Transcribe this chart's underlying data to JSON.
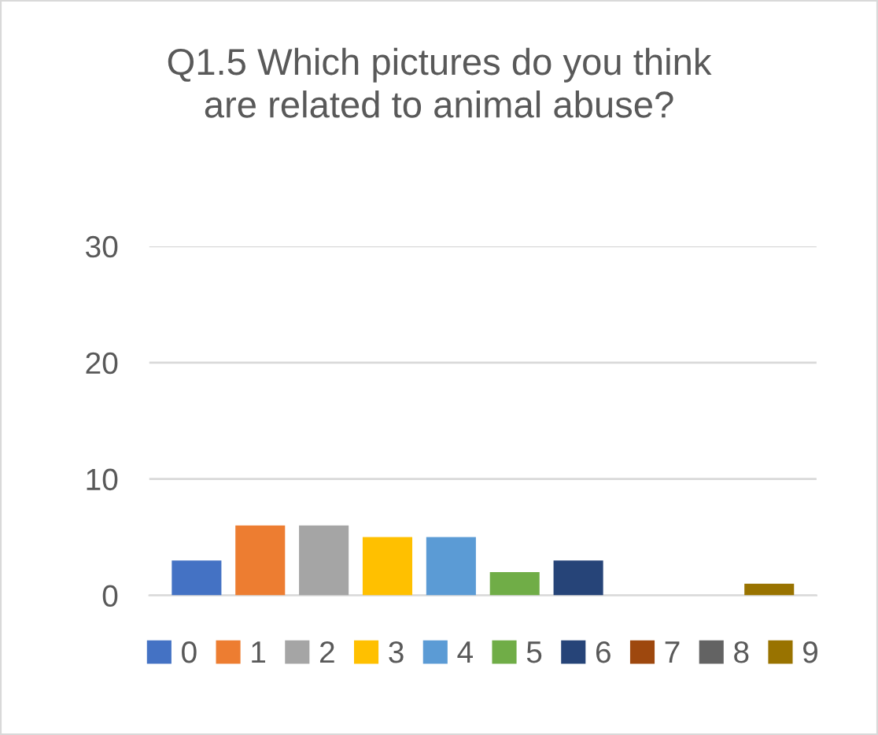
{
  "chart_data": {
    "type": "bar",
    "title": "Q1.5 Which pictures do you think\nare related to animal abuse?",
    "categories": [
      null
    ],
    "series": [
      {
        "name": "0",
        "color": "#4472c4",
        "values": [
          3
        ]
      },
      {
        "name": "1",
        "color": "#ed7d31",
        "values": [
          6
        ]
      },
      {
        "name": "2",
        "color": "#a5a5a5",
        "values": [
          6
        ]
      },
      {
        "name": "3",
        "color": "#ffc000",
        "values": [
          5
        ]
      },
      {
        "name": "4",
        "color": "#5b9bd5",
        "values": [
          5
        ]
      },
      {
        "name": "5",
        "color": "#70ad47",
        "values": [
          2
        ]
      },
      {
        "name": "6",
        "color": "#264478",
        "values": [
          3
        ]
      },
      {
        "name": "7",
        "color": "#9e480e",
        "values": [
          0
        ]
      },
      {
        "name": "8",
        "color": "#636363",
        "values": [
          0
        ]
      },
      {
        "name": "9",
        "color": "#997300",
        "values": [
          1
        ]
      }
    ],
    "ylim": [
      0,
      30
    ],
    "yticks": [
      0,
      10,
      20,
      30
    ],
    "grid": "y",
    "legend": "bottom"
  }
}
